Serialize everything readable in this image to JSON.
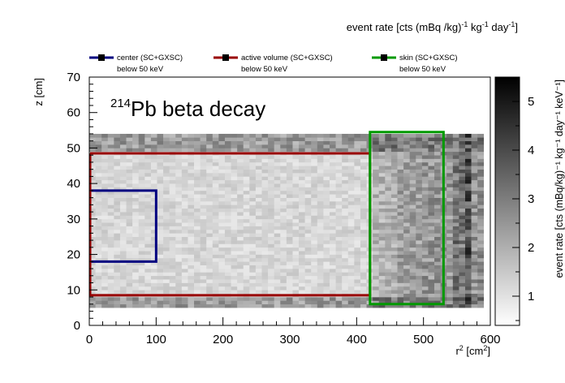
{
  "chart_data": {
    "type": "heatmap",
    "title_sup": "214",
    "title_main": "Pb beta decay",
    "top_label_pre": "event rate [cts (mBq /kg)",
    "top_label_sup1": "-1",
    "top_label_mid": " kg",
    "top_label_sup2": "-1",
    "top_label_mid2": " day",
    "top_label_sup3": "-1",
    "top_label_post": "]",
    "xlabel_main": "r",
    "xlabel_sup": "2",
    "xlabel_unit": " [cm",
    "xlabel_unit_sup": "2",
    "xlabel_end": "]",
    "ylabel": "z [cm]",
    "zlabel": "event rate [cts (mBq/kg)⁻¹ kg⁻¹ day⁻¹ keV⁻¹]",
    "xlim": [
      0,
      600
    ],
    "ylim": [
      0,
      70
    ],
    "zlim": [
      0.4,
      5.5
    ],
    "xticks": [
      "0",
      "100",
      "200",
      "300",
      "400",
      "500",
      "600"
    ],
    "yticks": [
      "0",
      "10",
      "20",
      "30",
      "40",
      "50",
      "60",
      "70"
    ],
    "zticks": [
      "1",
      "2",
      "3",
      "4",
      "5"
    ],
    "grid": false,
    "legend_position": "top",
    "legend": [
      {
        "label": "center (SC+GXSC)",
        "sub": "below 50 keV",
        "color": "#000080"
      },
      {
        "label": "active volume (SC+GXSC)",
        "sub": "below 50 keV",
        "color": "#990000"
      },
      {
        "label": "skin (SC+GXSC)",
        "sub": "below 50 keV",
        "color": "#009900"
      }
    ],
    "regions": [
      {
        "name": "center",
        "color": "#000080",
        "r2": [
          0,
          100
        ],
        "z": [
          18,
          38
        ]
      },
      {
        "name": "active volume",
        "color": "#990000",
        "r2": [
          0,
          420
        ],
        "z": [
          8.5,
          48.5
        ]
      },
      {
        "name": "skin",
        "color": "#009900",
        "r2": [
          420,
          530
        ],
        "z": [
          6,
          54.5
        ]
      }
    ],
    "heatmap_extent": {
      "r2": [
        0,
        590
      ],
      "z": [
        5,
        54
      ]
    },
    "heatmap_profile": {
      "r2_breaks": [
        0,
        420,
        460,
        500,
        540,
        560,
        575,
        590
      ],
      "interior_levels": [
        1.2,
        1.9,
        2.3,
        2.5,
        3.1,
        3.9,
        2.6
      ],
      "edge_z_bands": [
        [
          5,
          8.5
        ],
        [
          49,
          54
        ]
      ],
      "edge_level": 2.4
    }
  }
}
